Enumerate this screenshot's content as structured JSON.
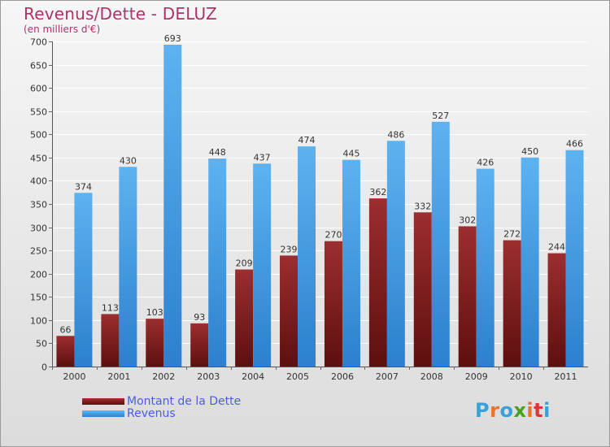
{
  "chart_data": {
    "type": "bar",
    "title": "Revenus/Dette - DELUZ",
    "subtitle": "(en milliers d'€)",
    "categories": [
      "2000",
      "2001",
      "2002",
      "2003",
      "2004",
      "2005",
      "2006",
      "2007",
      "2008",
      "2009",
      "2010",
      "2011"
    ],
    "series": [
      {
        "name": "Montant de la Dette",
        "color": "#7a1c1c",
        "values": [
          66,
          113,
          103,
          93,
          209,
          239,
          270,
          362,
          332,
          302,
          272,
          244
        ]
      },
      {
        "name": "Revenus",
        "color": "#4aa3e8",
        "values": [
          374,
          430,
          693,
          448,
          437,
          474,
          445,
          486,
          527,
          426,
          450,
          466
        ]
      }
    ],
    "ylim": [
      0,
      700
    ],
    "yticks": [
      0,
      50,
      100,
      150,
      200,
      250,
      300,
      350,
      400,
      450,
      500,
      550,
      600,
      650,
      700
    ],
    "grid": true,
    "legend_position": "bottom-left"
  },
  "logo": {
    "text": "Proxiti",
    "letter_colors": [
      "#3aa0d8",
      "#e8742c",
      "#3aa0d8",
      "#4aa020",
      "#e8742c",
      "#d23a3a",
      "#3aa0d8"
    ]
  }
}
